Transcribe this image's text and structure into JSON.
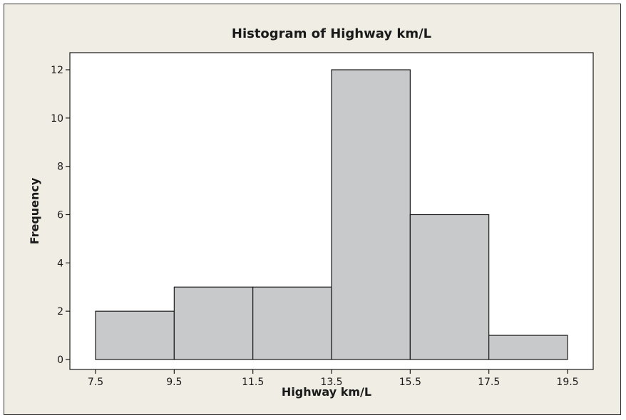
{
  "chart_data": {
    "type": "bar",
    "title": "Histogram of Highway km/L",
    "xlabel": "Highway km/L",
    "ylabel": "Frequency",
    "bin_edges": [
      7.5,
      9.5,
      11.5,
      13.5,
      15.5,
      17.5,
      19.5
    ],
    "x_tick_labels": [
      "7.5",
      "9.5",
      "11.5",
      "13.5",
      "15.5",
      "17.5",
      "19.5"
    ],
    "values": [
      2,
      3,
      3,
      12,
      6,
      1
    ],
    "y_ticks": [
      0,
      2,
      4,
      6,
      8,
      10,
      12
    ],
    "y_tick_labels": [
      "0",
      "2",
      "4",
      "6",
      "8",
      "10",
      "12"
    ],
    "xlim": [
      6.5,
      20.6
    ],
    "ylim": [
      0,
      12.7
    ],
    "grid": false,
    "legend": "none"
  },
  "colors": {
    "figure_background": "#f0ede4",
    "plot_background": "#ffffff",
    "bar_fill": "#c8c9cb",
    "bar_stroke": "#1a1a1a",
    "axis": "#1a1a1a"
  }
}
